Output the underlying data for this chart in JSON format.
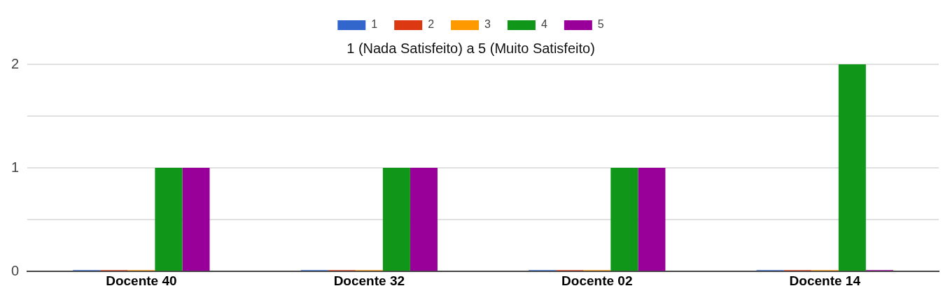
{
  "chart_data": {
    "type": "bar",
    "title": "1 (Nada Satisfeito) a 5 (Muito Satisfeito)",
    "categories": [
      "Docente 40",
      "Docente 32",
      "Docente 02",
      "Docente 14"
    ],
    "series": [
      {
        "name": "1",
        "color": "#3366cc",
        "values": [
          0,
          0,
          0,
          0
        ]
      },
      {
        "name": "2",
        "color": "#dc3912",
        "values": [
          0,
          0,
          0,
          0
        ]
      },
      {
        "name": "3",
        "color": "#ff9900",
        "values": [
          0,
          0,
          0,
          0
        ]
      },
      {
        "name": "4",
        "color": "#109618",
        "values": [
          1,
          1,
          1,
          2
        ]
      },
      {
        "name": "5",
        "color": "#990099",
        "values": [
          1,
          1,
          1,
          0
        ]
      }
    ],
    "ylim": [
      0,
      2
    ],
    "yticks": [
      0,
      {
        "value": 0.5,
        "label": null
      },
      1,
      {
        "value": 1.5,
        "label": null
      },
      2
    ],
    "grid": "y",
    "legend": "top"
  }
}
